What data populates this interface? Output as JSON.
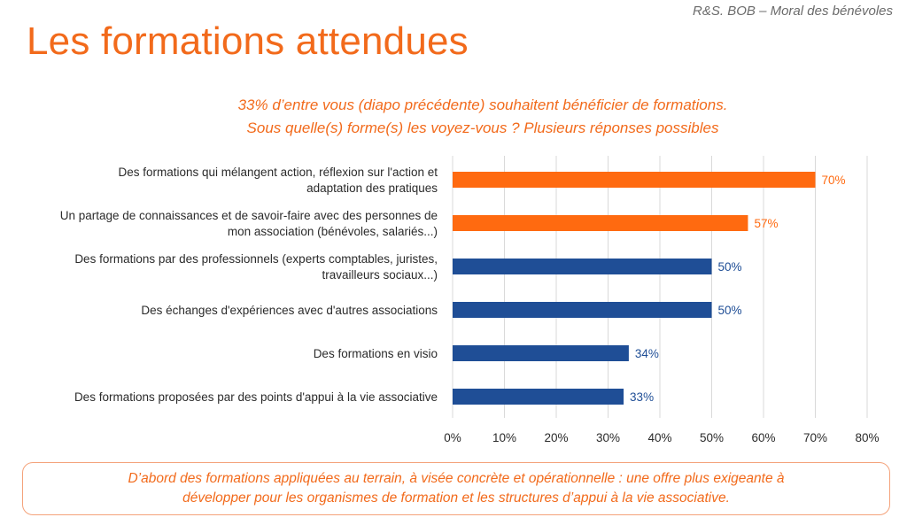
{
  "header": {
    "reference": "R&S. BOB – Moral des bénévoles",
    "title": "Les formations attendues"
  },
  "subtitle": {
    "line1": "33% d’entre vous (diapo précédente) souhaitent bénéficier de formations.",
    "line2": "Sous quelle(s) forme(s) les voyez-vous ? Plusieurs réponses possibles"
  },
  "colors": {
    "accent": "#ff6a10",
    "primary": "#1f4e96",
    "grid": "#d9d9d9"
  },
  "chart_data": {
    "type": "bar",
    "orientation": "horizontal",
    "categories": [
      [
        "Des formations qui mélangent action, réflexion sur l'action et",
        "adaptation des pratiques"
      ],
      [
        "Un partage de connaissances et de savoir-faire avec des personnes de",
        "mon association (bénévoles, salariés...)"
      ],
      [
        "Des formations par des professionnels (experts comptables, juristes,",
        "travailleurs sociaux...)"
      ],
      [
        "Des échanges d'expériences avec d'autres associations"
      ],
      [
        "Des formations en visio"
      ],
      [
        "Des formations proposées par des points d'appui à la vie associative"
      ]
    ],
    "values": [
      70,
      57,
      50,
      50,
      34,
      33
    ],
    "value_labels": [
      "70%",
      "57%",
      "50%",
      "50%",
      "34%",
      "33%"
    ],
    "highlighted": [
      true,
      true,
      false,
      false,
      false,
      false
    ],
    "xlim": [
      0,
      80
    ],
    "xticks": [
      0,
      10,
      20,
      30,
      40,
      50,
      60,
      70,
      80
    ],
    "xtick_labels": [
      "0%",
      "10%",
      "20%",
      "30%",
      "40%",
      "50%",
      "60%",
      "70%",
      "80%"
    ],
    "grid": true,
    "legend": "none"
  },
  "conclusion": {
    "line1": "D’abord des formations appliquées au terrain, à visée concrète et opérationnelle : une offre plus exigeante à",
    "line2": "développer pour les organismes de formation et les structures d’appui à la vie associative."
  }
}
